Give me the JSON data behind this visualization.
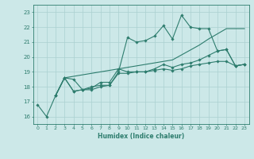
{
  "xlabel": "Humidex (Indice chaleur)",
  "xlim": [
    -0.5,
    23.5
  ],
  "ylim": [
    15.5,
    23.5
  ],
  "xticks": [
    0,
    1,
    2,
    3,
    4,
    5,
    6,
    7,
    8,
    9,
    10,
    11,
    12,
    13,
    14,
    15,
    16,
    17,
    18,
    19,
    20,
    21,
    22,
    23
  ],
  "yticks": [
    16,
    17,
    18,
    19,
    20,
    21,
    22,
    23
  ],
  "bg_color": "#cce8e8",
  "line_color": "#2e7d6e",
  "grid_color": "#aad0d0",
  "lines": [
    {
      "x": [
        0,
        1,
        2,
        3,
        4,
        5,
        6,
        7,
        8,
        9,
        10,
        11,
        12,
        13,
        14,
        15,
        16,
        17,
        18,
        19,
        20,
        21,
        22,
        23
      ],
      "y": [
        16.8,
        16.0,
        17.4,
        18.6,
        17.7,
        17.8,
        18.0,
        18.1,
        18.1,
        19.0,
        21.3,
        21.0,
        21.1,
        21.4,
        22.1,
        21.2,
        22.8,
        22.0,
        21.9,
        21.9,
        20.4,
        20.5,
        19.4,
        19.5
      ]
    },
    {
      "x": [
        2,
        3,
        9,
        15,
        18,
        19,
        21,
        22,
        23
      ],
      "y": [
        17.4,
        18.6,
        19.2,
        19.8,
        20.8,
        21.2,
        21.9,
        21.9,
        21.9
      ]
    },
    {
      "x": [
        2,
        3,
        4,
        5,
        6,
        7,
        8,
        9,
        10,
        11,
        12,
        13,
        14,
        15,
        16,
        17,
        18,
        19,
        20,
        21,
        22,
        23
      ],
      "y": [
        17.4,
        18.6,
        18.5,
        17.8,
        17.9,
        18.3,
        18.3,
        19.2,
        19.0,
        19.0,
        19.0,
        19.2,
        19.5,
        19.3,
        19.5,
        19.6,
        19.8,
        20.1,
        20.4,
        20.5,
        19.4,
        19.5
      ]
    },
    {
      "x": [
        2,
        3,
        4,
        5,
        6,
        7,
        8,
        9,
        10,
        11,
        12,
        13,
        14,
        15,
        16,
        17,
        18,
        19,
        20,
        21,
        22,
        23
      ],
      "y": [
        17.4,
        18.6,
        17.7,
        17.8,
        17.8,
        18.0,
        18.1,
        18.9,
        18.9,
        19.0,
        19.0,
        19.1,
        19.2,
        19.1,
        19.2,
        19.4,
        19.5,
        19.6,
        19.7,
        19.7,
        19.4,
        19.5
      ]
    }
  ]
}
